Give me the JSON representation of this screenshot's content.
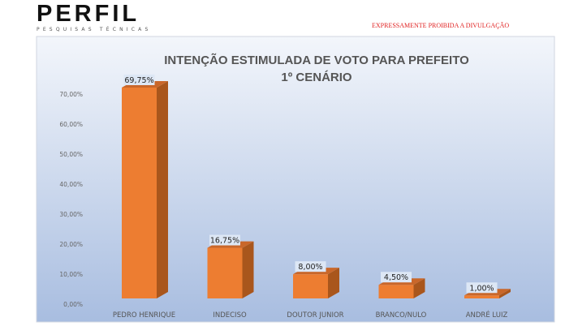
{
  "header": {
    "logo_text": "PERFIL",
    "logo_subtitle": "PESQUISAS TÉCNICAS",
    "notice": "EXPRESSAMENTE PROIBIDA A DIVULGAÇÃO"
  },
  "chart_data": {
    "type": "bar",
    "title": "INTENÇÃO ESTIMULADA DE VOTO PARA PREFEITO",
    "subtitle": "1º CENÁRIO",
    "categories": [
      "PEDRO HENRIQUE",
      "INDECISO",
      "DOUTOR JUNIOR",
      "BRANCO/NULO",
      "ANDRÉ LUIZ"
    ],
    "values": [
      69.75,
      16.75,
      8.0,
      4.5,
      1.0
    ],
    "data_labels": [
      "69,75%",
      "16,75%",
      "8,00%",
      "4,50%",
      "1,00%"
    ],
    "yticks": [
      "0,00%",
      "10,00%",
      "20,00%",
      "30,00%",
      "40,00%",
      "50,00%",
      "60,00%",
      "70,00%"
    ],
    "ylim": [
      0,
      70
    ],
    "grid": false,
    "style": "3d-column",
    "colors": {
      "bar_front": "#ed7d31",
      "bar_side": "#a9561c",
      "bar_top": "#c9672a",
      "bg_top": "#f3f6fb",
      "bg_bottom": "#a8bde0",
      "label_bg": "#dde7f5"
    }
  }
}
